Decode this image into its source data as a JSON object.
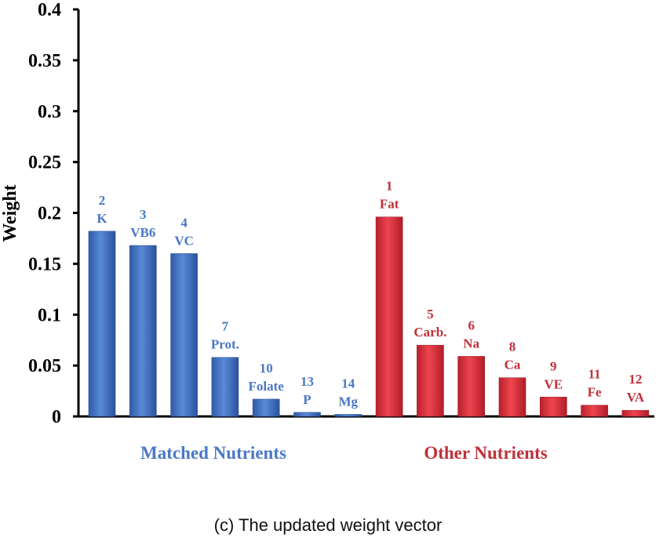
{
  "caption": "(c) The updated weight vector",
  "colors": {
    "matched": "#4472c4",
    "matched_text": "#4a78c6",
    "other": "#e03040",
    "other_text": "#c0303a"
  },
  "chart_data": {
    "type": "bar",
    "title": "",
    "xlabel": "",
    "ylabel": "Weight",
    "ylim": [
      0,
      0.4
    ],
    "yticks": [
      "0",
      "0.05",
      "0.1",
      "0.15",
      "0.2",
      "0.25",
      "0.3",
      "0.35",
      "0.4"
    ],
    "grid": false,
    "groups": [
      {
        "name": "Matched Nutrients",
        "color_key": "matched",
        "bars": [
          {
            "id": "2",
            "label": "K",
            "value": 0.182
          },
          {
            "id": "3",
            "label": "VB6",
            "value": 0.168
          },
          {
            "id": "4",
            "label": "VC",
            "value": 0.16
          },
          {
            "id": "7",
            "label": "Prot.",
            "value": 0.058
          },
          {
            "id": "10",
            "label": "Folate",
            "value": 0.017
          },
          {
            "id": "13",
            "label": "P",
            "value": 0.004
          },
          {
            "id": "14",
            "label": "Mg",
            "value": 0.002
          }
        ]
      },
      {
        "name": "Other Nutrients",
        "color_key": "other",
        "bars": [
          {
            "id": "1",
            "label": "Fat",
            "value": 0.196
          },
          {
            "id": "5",
            "label": "Carb.",
            "value": 0.07
          },
          {
            "id": "6",
            "label": "Na",
            "value": 0.059
          },
          {
            "id": "8",
            "label": "Ca",
            "value": 0.038
          },
          {
            "id": "9",
            "label": "VE",
            "value": 0.019
          },
          {
            "id": "11",
            "label": "Fe",
            "value": 0.011
          },
          {
            "id": "12",
            "label": "VA",
            "value": 0.006
          }
        ]
      }
    ]
  }
}
